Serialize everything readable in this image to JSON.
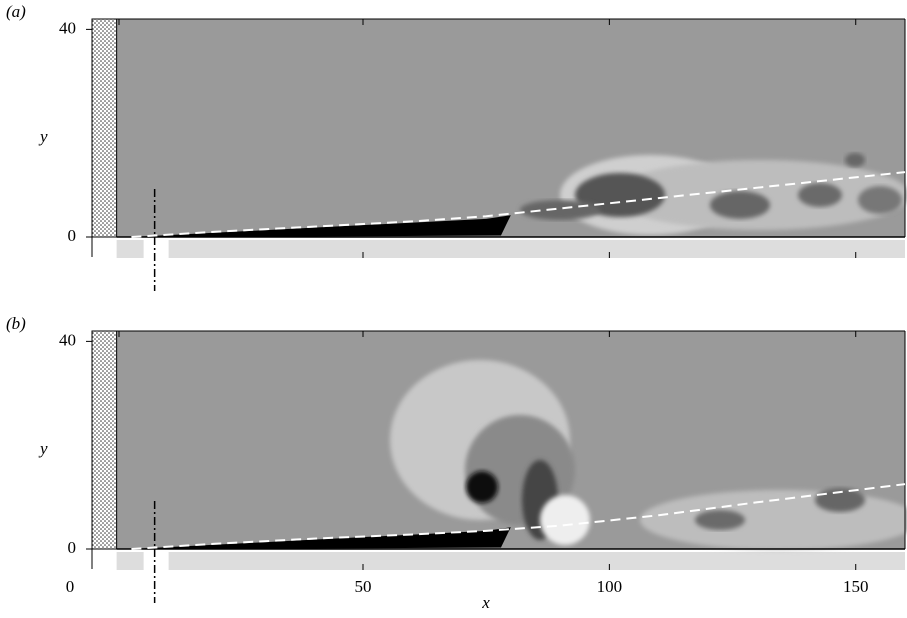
{
  "chart_data": [
    {
      "type": "field",
      "panel_label": "(a)",
      "y_label": "y",
      "xlim": [
        -5,
        160
      ],
      "ylim": [
        0,
        42
      ],
      "yticks": [
        0,
        40
      ],
      "x": [
        3,
        20,
        40,
        60,
        75,
        90,
        110,
        130,
        160
      ],
      "series": [
        {
          "color": "#ffffff",
          "values": [
            0,
            1,
            2,
            3,
            4,
            5.5,
            7.5,
            9.5,
            12.5
          ]
        }
      ]
    },
    {
      "type": "field",
      "panel_label": "(b)",
      "y_label": "y",
      "x_label": "x",
      "x_origin_label": "0",
      "xlim": [
        -5,
        160
      ],
      "ylim": [
        0,
        42
      ],
      "yticks": [
        0,
        40
      ],
      "xticks": [
        50,
        100,
        150
      ],
      "x": [
        3,
        20,
        40,
        60,
        75,
        90,
        110,
        130,
        160
      ],
      "series": [
        {
          "color": "#ffffff",
          "values": [
            0,
            1,
            2,
            2.8,
            3.5,
            4.5,
            6.5,
            9,
            12.5
          ]
        }
      ]
    }
  ]
}
